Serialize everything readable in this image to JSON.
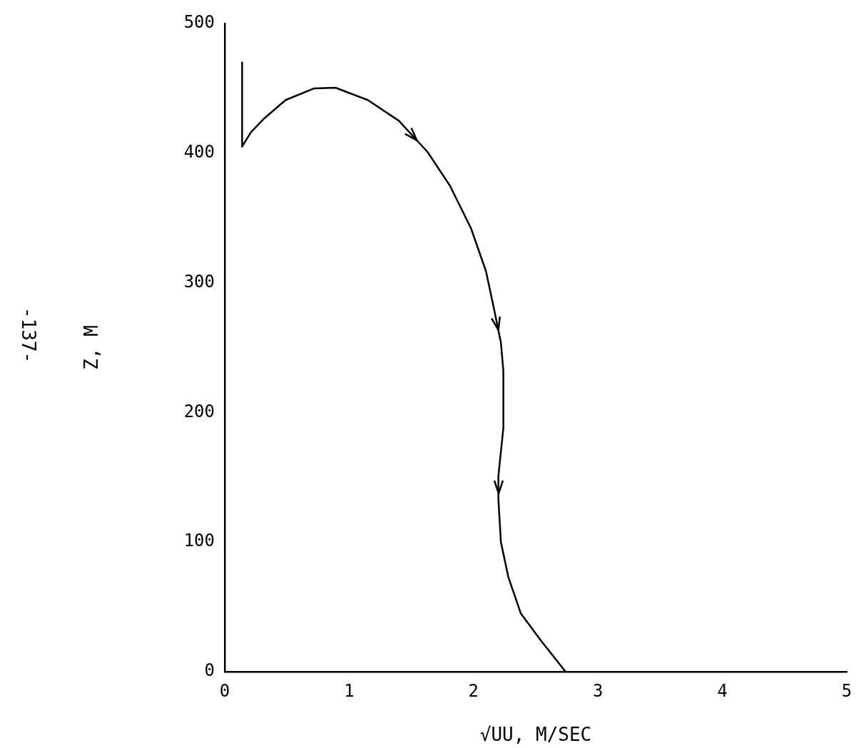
{
  "chart_data": {
    "type": "line",
    "xlabel": "√UU, M/SEC",
    "ylabel": "Z, M",
    "annotations": [
      "-137-"
    ],
    "x": [
      0.14,
      0.14,
      0.21,
      0.32,
      0.49,
      0.72,
      0.89,
      1.15,
      1.4,
      1.63,
      1.81,
      1.98,
      2.1,
      2.16,
      2.22,
      2.24,
      2.24,
      2.2,
      2.2,
      2.22,
      2.28,
      2.38,
      2.55,
      2.74
    ],
    "series": [
      {
        "color": "#000000",
        "values": [
          470,
          405,
          416,
          427,
          441,
          450,
          450.5,
          441,
          425,
          401,
          375,
          342,
          309,
          282,
          254,
          232,
          188,
          151,
          133,
          100,
          73,
          45,
          23,
          0
        ]
      }
    ],
    "xlim": [
      0,
      5
    ],
    "xticks": [
      0,
      1,
      2,
      3,
      4,
      5
    ],
    "ylim": [
      0,
      500
    ],
    "yticks": [
      0,
      100,
      200,
      300,
      400,
      500
    ],
    "grid": false,
    "legend": false,
    "marker": "none",
    "line_style": "solid"
  }
}
